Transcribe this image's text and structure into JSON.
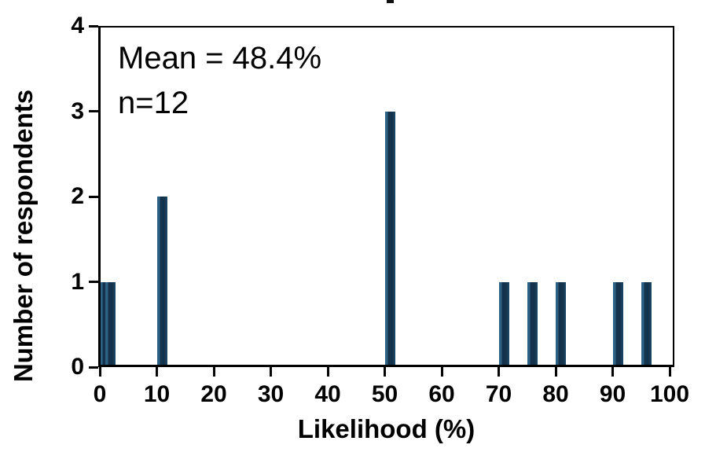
{
  "chart_data": {
    "type": "bar",
    "title": "",
    "xlabel": "Likelihood (%)",
    "ylabel": "Number of respondents",
    "annotation": {
      "line1": "Mean = 48.4%",
      "line2": "n=12"
    },
    "mean_percent": 48.4,
    "n": 12,
    "x_ticks": [
      0,
      10,
      20,
      30,
      40,
      50,
      60,
      70,
      80,
      90,
      100
    ],
    "y_ticks": [
      0,
      1,
      2,
      3,
      4
    ],
    "xlim": [
      0,
      101
    ],
    "ylim": [
      0,
      4
    ],
    "grid": false,
    "legend": "none",
    "points": [
      {
        "x": 0,
        "count": 1
      },
      {
        "x": 1,
        "count": 1
      },
      {
        "x": 10,
        "count": 2
      },
      {
        "x": 50,
        "count": 3
      },
      {
        "x": 70,
        "count": 1
      },
      {
        "x": 75,
        "count": 1
      },
      {
        "x": 80,
        "count": 1
      },
      {
        "x": 90,
        "count": 1
      },
      {
        "x": 95,
        "count": 1
      }
    ],
    "colors": {
      "bar_fill": "#14324b",
      "bar_edge_light": "#2d6186",
      "bar_edge_mid": "#1d4a67",
      "axis": "#000000",
      "text": "#000000"
    }
  }
}
